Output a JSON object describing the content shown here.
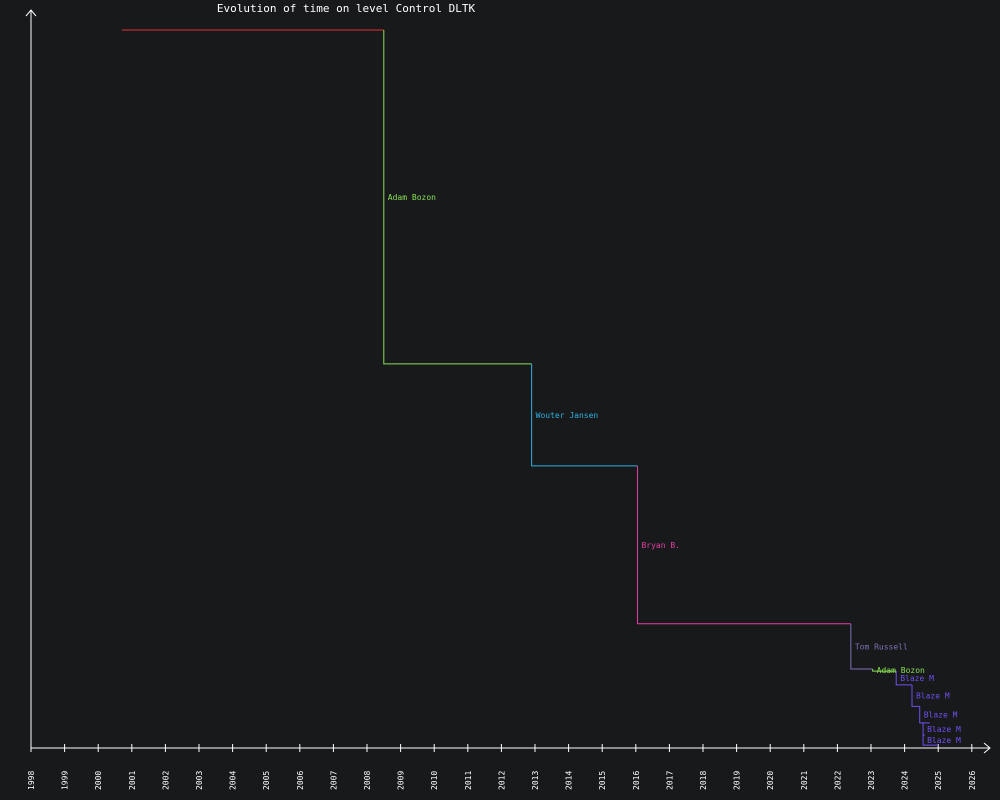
{
  "chart_data": {
    "type": "line",
    "title": "Evolution of time on level Control DLTK",
    "xlabel": "",
    "ylabel": "",
    "x_axis": {
      "type": "year",
      "ticks": [
        "1998",
        "1999",
        "2000",
        "2001",
        "2002",
        "2003",
        "2004",
        "2005",
        "2006",
        "2007",
        "2008",
        "2009",
        "2010",
        "2011",
        "2012",
        "2013",
        "2014",
        "2015",
        "2016",
        "2017",
        "2018",
        "2019",
        "2020",
        "2021",
        "2022",
        "2023",
        "2024",
        "2025",
        "2026"
      ]
    },
    "y_axis": {
      "ticks_shown": false
    },
    "grid": false,
    "legend": "none",
    "axis_color": "#ffffff",
    "title_color": "#ffffff",
    "series": [
      {
        "name": "",
        "color": "#e03030",
        "x_start": 2000.7,
        "x_end": 2008.5,
        "y": 1.0
      },
      {
        "name": "Adam Bozon",
        "color": "#88e055",
        "x_start": 2008.5,
        "x_end": 2012.9,
        "y": 0.535
      },
      {
        "name": "Wouter Jansen",
        "color": "#2fb0e0",
        "x_start": 2012.9,
        "x_end": 2016.05,
        "y": 0.393
      },
      {
        "name": "Bryan B.",
        "color": "#e040a0",
        "x_start": 2016.05,
        "x_end": 2022.4,
        "y": 0.173
      },
      {
        "name": "Tom Russell",
        "color": "#8070b8",
        "x_start": 2022.4,
        "x_end": 2023.05,
        "y": 0.11
      },
      {
        "name": "Adam Bozon",
        "color": "#88e055",
        "x_start": 2023.05,
        "x_end": 2023.75,
        "y": 0.107
      },
      {
        "name": "Blaze M",
        "color": "#7050f0",
        "x_start": 2023.75,
        "x_end": 2024.22,
        "y": 0.088
      },
      {
        "name": "Blaze M",
        "color": "#7050f0",
        "x_start": 2024.22,
        "x_end": 2024.45,
        "y": 0.058
      },
      {
        "name": "Blaze M",
        "color": "#7050f0",
        "x_start": 2024.45,
        "x_end": 2024.75,
        "y": 0.035
      },
      {
        "name": "Blaze M",
        "color": "#7050f0",
        "x_start": 2024.55,
        "x_end": 2024.6,
        "y": 0.018
      },
      {
        "name": "Blaze M",
        "color": "#7050f0",
        "x_start": 2024.55,
        "x_end": 2025.0,
        "y": 0.004
      }
    ]
  }
}
